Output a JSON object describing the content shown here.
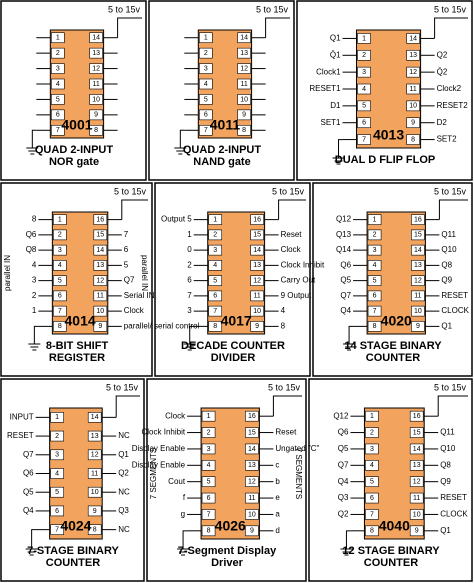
{
  "panels": [
    {
      "chip": "4001",
      "caption": [
        "QUAD  2-INPUT",
        "NOR  gate"
      ],
      "supply": "5 to 15v",
      "left": [
        {
          "num": "1"
        },
        {
          "num": "2"
        },
        {
          "num": "3"
        },
        {
          "num": "4"
        },
        {
          "num": "5"
        },
        {
          "num": "6"
        },
        {
          "num": "7"
        }
      ],
      "right": [
        {
          "num": "14"
        },
        {
          "num": "13"
        },
        {
          "num": "12"
        },
        {
          "num": "11"
        },
        {
          "num": "10"
        },
        {
          "num": "9"
        },
        {
          "num": "8"
        }
      ]
    },
    {
      "chip": "4011",
      "caption": [
        "QUAD  2-INPUT",
        "NAND  gate"
      ],
      "supply": "5 to 15v",
      "left": [
        {
          "num": "1"
        },
        {
          "num": "2"
        },
        {
          "num": "3"
        },
        {
          "num": "4"
        },
        {
          "num": "5"
        },
        {
          "num": "6"
        },
        {
          "num": "7"
        }
      ],
      "right": [
        {
          "num": "14"
        },
        {
          "num": "13"
        },
        {
          "num": "12"
        },
        {
          "num": "11"
        },
        {
          "num": "10"
        },
        {
          "num": "9"
        },
        {
          "num": "8"
        }
      ]
    },
    {
      "chip": "4013",
      "caption": [
        "DUAL  D  FLIP FLOP"
      ],
      "supply": "5 to 15v",
      "left": [
        {
          "num": "1",
          "label": "Q1"
        },
        {
          "num": "2",
          "label": "Q̄1"
        },
        {
          "num": "3",
          "label": "Clock1"
        },
        {
          "num": "4",
          "label": "RESET1"
        },
        {
          "num": "5",
          "label": "D1"
        },
        {
          "num": "6",
          "label": "SET1"
        },
        {
          "num": "7"
        }
      ],
      "right": [
        {
          "num": "14"
        },
        {
          "num": "13",
          "label": "Q2"
        },
        {
          "num": "12",
          "label": "Q̄2"
        },
        {
          "num": "11",
          "label": "Clock2"
        },
        {
          "num": "10",
          "label": "RESET2"
        },
        {
          "num": "9",
          "label": "D2"
        },
        {
          "num": "8",
          "label": "SET2"
        }
      ]
    },
    {
      "chip": "4014",
      "caption": [
        "8-BIT SHIFT",
        "REGISTER"
      ],
      "supply": "5 to 15v",
      "notes": [
        "parallel IN",
        "parallel IN"
      ],
      "left": [
        {
          "num": "1",
          "label": "8"
        },
        {
          "num": "2",
          "label": "Q6"
        },
        {
          "num": "3",
          "label": "Q8"
        },
        {
          "num": "4",
          "label": "4"
        },
        {
          "num": "5",
          "label": "3"
        },
        {
          "num": "6",
          "label": "2"
        },
        {
          "num": "7",
          "label": "1"
        },
        {
          "num": "8"
        }
      ],
      "right": [
        {
          "num": "16"
        },
        {
          "num": "15",
          "label": "7"
        },
        {
          "num": "14",
          "label": "6"
        },
        {
          "num": "13",
          "label": "5"
        },
        {
          "num": "12",
          "label": "Q7"
        },
        {
          "num": "11",
          "label": "Serial IN"
        },
        {
          "num": "10",
          "label": "Clock"
        },
        {
          "num": "9",
          "label": "parallel/ serial control"
        }
      ]
    },
    {
      "chip": "4017",
      "caption": [
        "DECADE COUNTER",
        "DIVIDER"
      ],
      "supply": "5 to 15v",
      "left": [
        {
          "num": "1",
          "label": "Output 5"
        },
        {
          "num": "2",
          "label": "1"
        },
        {
          "num": "3",
          "label": "0"
        },
        {
          "num": "4",
          "label": "2"
        },
        {
          "num": "5",
          "label": "6"
        },
        {
          "num": "6",
          "label": "7"
        },
        {
          "num": "7",
          "label": "3"
        },
        {
          "num": "8"
        }
      ],
      "right": [
        {
          "num": "16"
        },
        {
          "num": "15",
          "label": "Reset"
        },
        {
          "num": "14",
          "label": "Clock"
        },
        {
          "num": "13",
          "label": "Clock Inhibit"
        },
        {
          "num": "12",
          "label": "Carry Out"
        },
        {
          "num": "11",
          "label": "9  Output"
        },
        {
          "num": "10",
          "label": "4"
        },
        {
          "num": "9",
          "label": "8"
        }
      ]
    },
    {
      "chip": "4020",
      "caption": [
        "14 STAGE BINARY",
        "COUNTER"
      ],
      "supply": "5 to 15v",
      "left": [
        {
          "num": "1",
          "label": "Q12"
        },
        {
          "num": "2",
          "label": "Q13"
        },
        {
          "num": "3",
          "label": "Q14"
        },
        {
          "num": "4",
          "label": "Q6"
        },
        {
          "num": "5",
          "label": "Q5"
        },
        {
          "num": "6",
          "label": "Q7"
        },
        {
          "num": "7",
          "label": "Q4"
        },
        {
          "num": "8"
        }
      ],
      "right": [
        {
          "num": "16"
        },
        {
          "num": "15",
          "label": "Q11"
        },
        {
          "num": "14",
          "label": "Q10"
        },
        {
          "num": "13",
          "label": "Q8"
        },
        {
          "num": "12",
          "label": "Q9"
        },
        {
          "num": "11",
          "label": "RESET"
        },
        {
          "num": "10",
          "label": "CLOCK"
        },
        {
          "num": "9",
          "label": "Q1"
        }
      ]
    },
    {
      "chip": "4024",
      "caption": [
        "7-STAGE BINARY",
        "COUNTER"
      ],
      "supply": "5 to 15v",
      "left": [
        {
          "num": "1",
          "label": "INPUT"
        },
        {
          "num": "2",
          "label": "RESET"
        },
        {
          "num": "3",
          "label": "Q7"
        },
        {
          "num": "4",
          "label": "Q6"
        },
        {
          "num": "5",
          "label": "Q5"
        },
        {
          "num": "6",
          "label": "Q4"
        },
        {
          "num": "7"
        }
      ],
      "right": [
        {
          "num": "14"
        },
        {
          "num": "13",
          "label": "NC"
        },
        {
          "num": "12",
          "label": "Q1"
        },
        {
          "num": "11",
          "label": "Q2"
        },
        {
          "num": "10",
          "label": "NC"
        },
        {
          "num": "9",
          "label": "Q3"
        },
        {
          "num": "8",
          "label": "NC"
        }
      ]
    },
    {
      "chip": "4026",
      "caption": [
        "7-Segment Display",
        "Driver"
      ],
      "supply": "5 to 15v",
      "notes": [
        "7 SEGMENTS",
        "7 SEGMENTS"
      ],
      "left": [
        {
          "num": "1",
          "label": "Clock"
        },
        {
          "num": "2",
          "label": "Clock Inhibit"
        },
        {
          "num": "3",
          "label": "Display Enable"
        },
        {
          "num": "4",
          "label": "Display Enable"
        },
        {
          "num": "5",
          "label": "Cout"
        },
        {
          "num": "6",
          "label": "f"
        },
        {
          "num": "7",
          "label": "g"
        },
        {
          "num": "8"
        }
      ],
      "right": [
        {
          "num": "16"
        },
        {
          "num": "15",
          "label": "Reset"
        },
        {
          "num": "14",
          "label": "Ungated \"C\""
        },
        {
          "num": "13",
          "label": "c"
        },
        {
          "num": "12",
          "label": "b"
        },
        {
          "num": "11",
          "label": "e"
        },
        {
          "num": "10",
          "label": "a"
        },
        {
          "num": "9",
          "label": "d"
        }
      ]
    },
    {
      "chip": "4040",
      "caption": [
        "12 STAGE BINARY",
        "COUNTER"
      ],
      "supply": "5 to 15v",
      "left": [
        {
          "num": "1",
          "label": "Q12"
        },
        {
          "num": "2",
          "label": "Q6"
        },
        {
          "num": "3",
          "label": "Q5"
        },
        {
          "num": "4",
          "label": "Q7"
        },
        {
          "num": "5",
          "label": "Q4"
        },
        {
          "num": "6",
          "label": "Q3"
        },
        {
          "num": "7",
          "label": "Q2"
        },
        {
          "num": "8"
        }
      ],
      "right": [
        {
          "num": "16"
        },
        {
          "num": "15",
          "label": "Q11"
        },
        {
          "num": "14",
          "label": "Q10"
        },
        {
          "num": "13",
          "label": "Q8"
        },
        {
          "num": "12",
          "label": "Q9"
        },
        {
          "num": "11",
          "label": "RESET"
        },
        {
          "num": "10",
          "label": "CLOCK"
        },
        {
          "num": "9",
          "label": "Q1"
        }
      ]
    }
  ]
}
